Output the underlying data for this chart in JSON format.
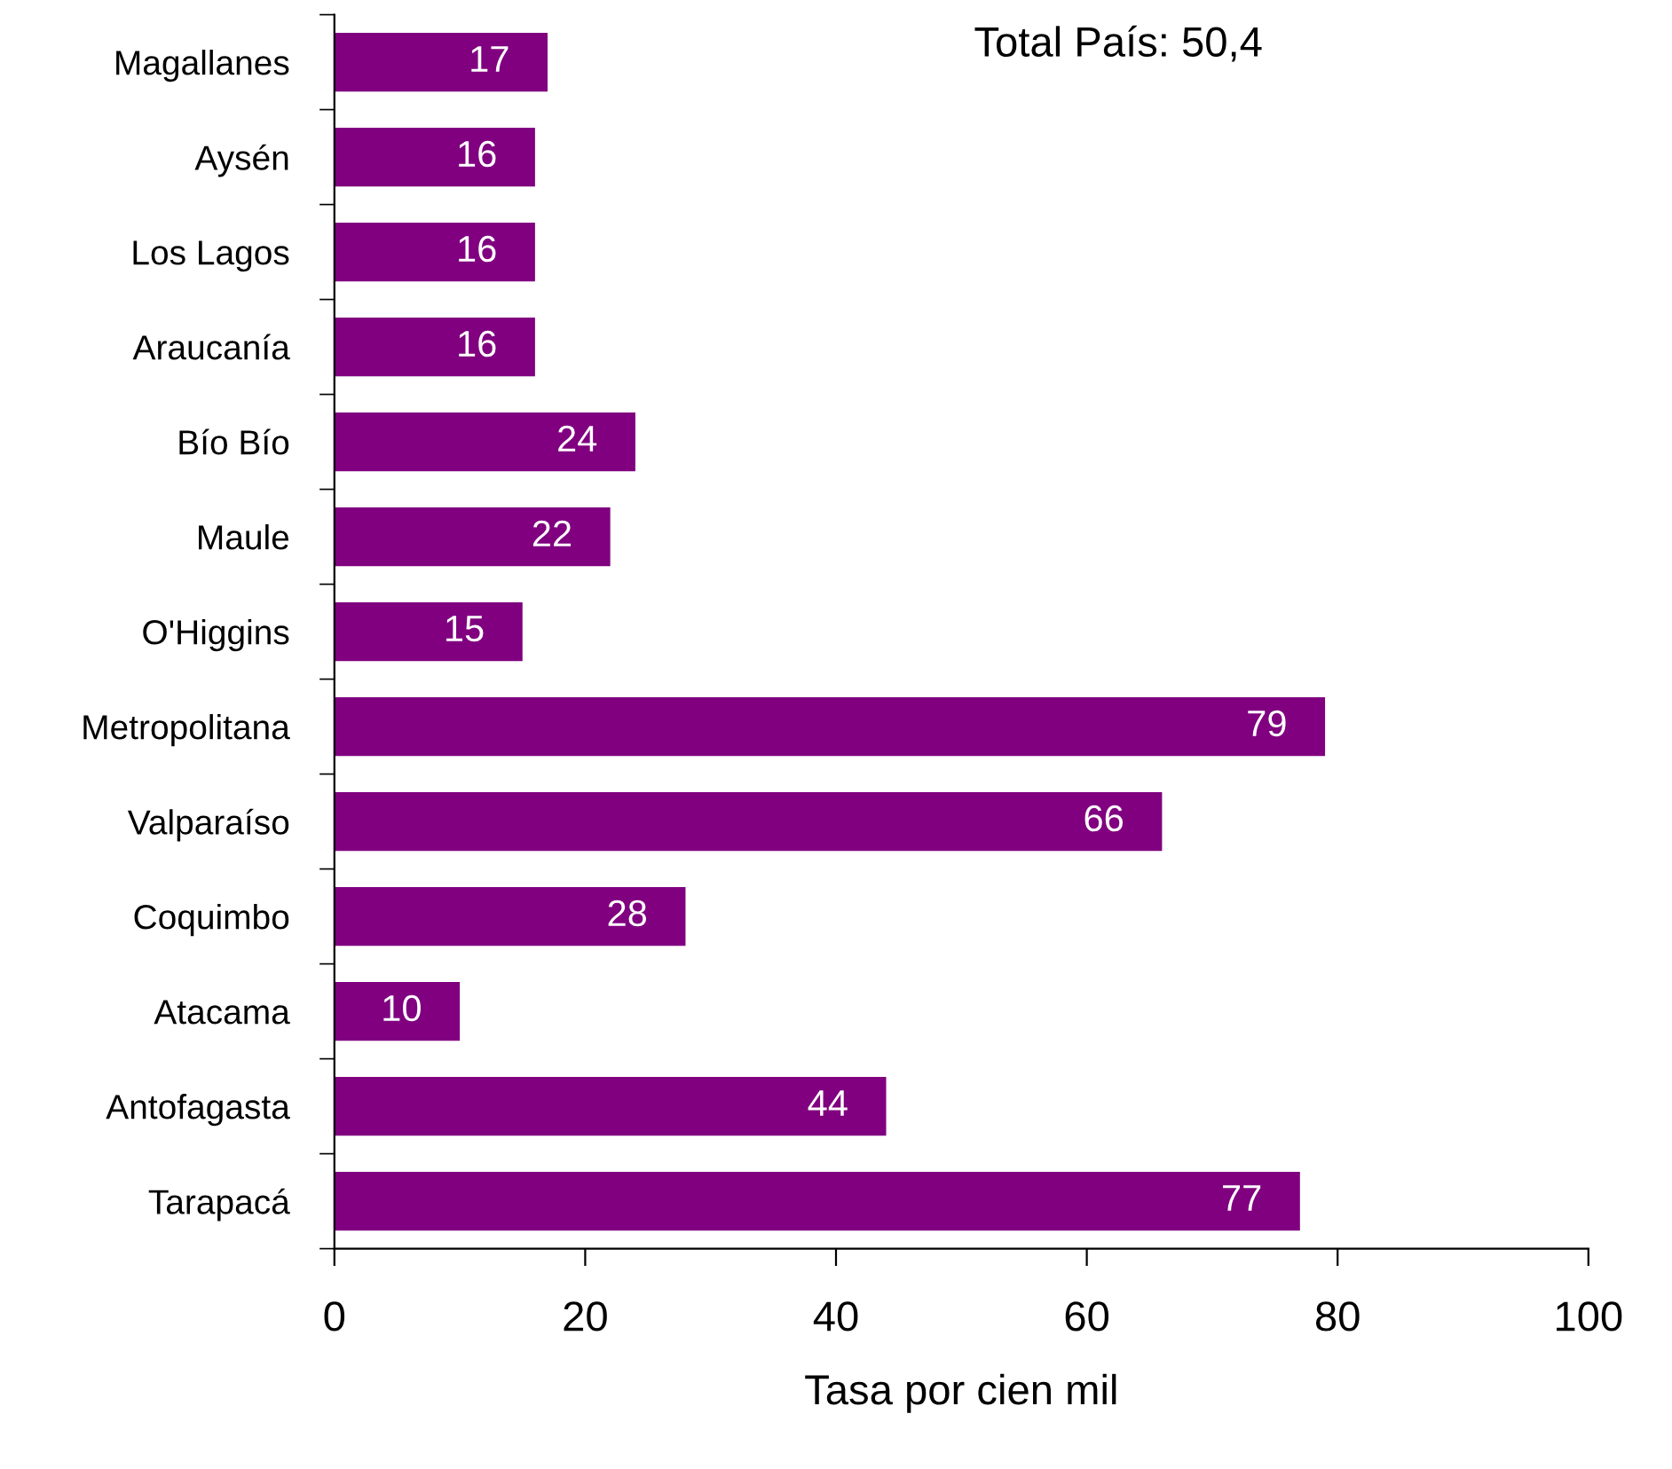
{
  "chart_data": {
    "type": "bar",
    "orientation": "horizontal",
    "xlabel": "Tasa por cien mil",
    "categories": [
      "Magallanes",
      "Aysén",
      "Los Lagos",
      "Araucanía",
      "Bío Bío",
      "Maule",
      "O'Higgins",
      "Metropolitana",
      "Valparaíso",
      "Coquimbo",
      "Atacama",
      "Antofagasta",
      "Tarapacá"
    ],
    "values": [
      17,
      16,
      16,
      16,
      24,
      22,
      15,
      79,
      66,
      28,
      10,
      44,
      77
    ],
    "color": "#800080",
    "xlim": [
      0,
      100
    ],
    "xticks": [
      0,
      20,
      40,
      60,
      80,
      100
    ],
    "data_labels": true,
    "grid": false,
    "annotations": [
      "Total País: 50,4"
    ]
  }
}
